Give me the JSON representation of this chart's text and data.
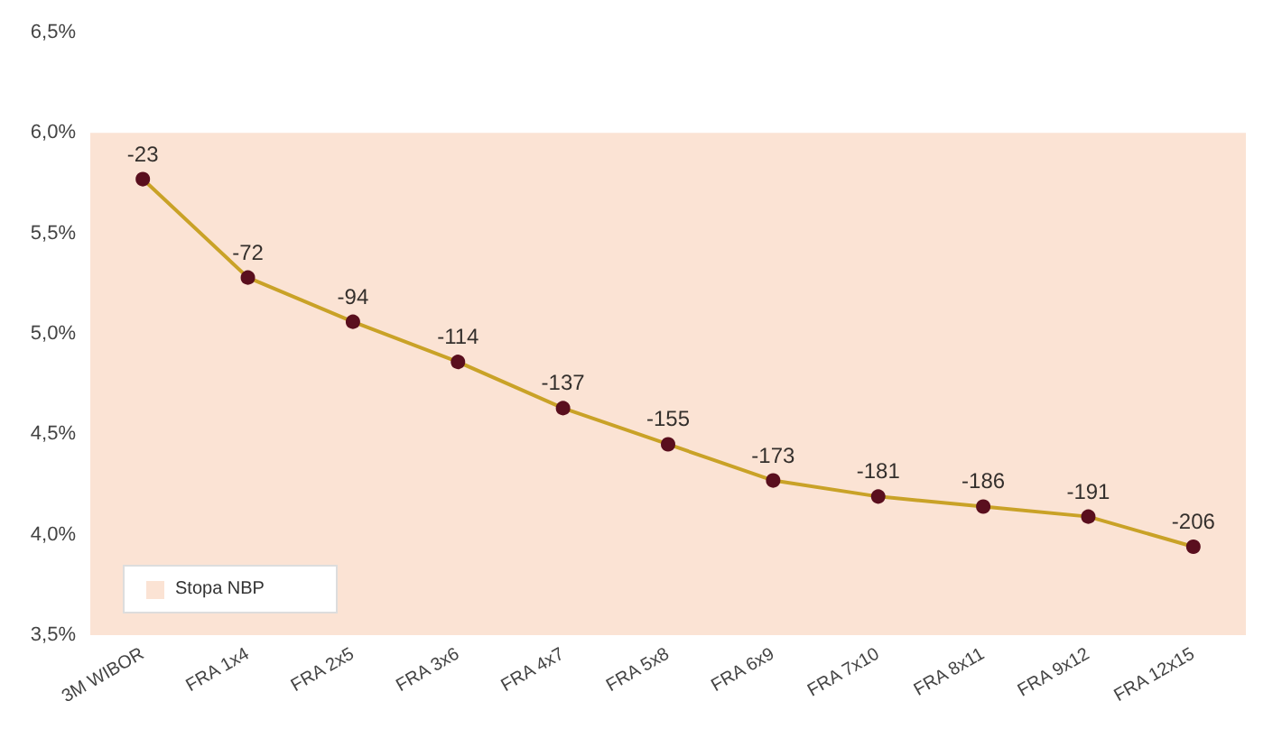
{
  "chart_data": {
    "type": "line",
    "categories": [
      "3M WIBOR",
      "FRA 1x4",
      "FRA 2x5",
      "FRA 3x6",
      "FRA 4x7",
      "FRA 5x8",
      "FRA 6x9",
      "FRA 7x10",
      "FRA 8x11",
      "FRA 9x12",
      "FRA 12x15"
    ],
    "series": [
      {
        "color": "#c9a227",
        "values": [
          5.77,
          5.28,
          5.06,
          4.86,
          4.63,
          4.45,
          4.27,
          4.19,
          4.14,
          4.09,
          3.94
        ]
      }
    ],
    "annotations": [
      {
        "text": "-23",
        "x": "3M WIBOR",
        "y": 5.77
      },
      {
        "text": "-72",
        "x": "FRA 1x4",
        "y": 5.28
      },
      {
        "text": "-94",
        "x": "FRA 2x5",
        "y": 5.06
      },
      {
        "text": "-114",
        "x": "FRA 3x6",
        "y": 4.86
      },
      {
        "text": "-137",
        "x": "FRA 4x7",
        "y": 4.63
      },
      {
        "text": "-155",
        "x": "FRA 5x8",
        "y": 4.45
      },
      {
        "text": "-173",
        "x": "FRA 6x9",
        "y": 4.27
      },
      {
        "text": "-181",
        "x": "FRA 7x10",
        "y": 4.19
      },
      {
        "text": "-186",
        "x": "FRA 8x11",
        "y": 4.14
      },
      {
        "text": "-191",
        "x": "FRA 9x12",
        "y": 4.09
      },
      {
        "text": "-206",
        "x": "FRA 12x15",
        "y": 3.94
      }
    ],
    "ylim": [
      3.5,
      6.5
    ],
    "yticks": [
      {
        "value": 3.5,
        "label": "3,5%"
      },
      {
        "value": 4.0,
        "label": "4,0%"
      },
      {
        "value": 4.5,
        "label": "4,5%"
      },
      {
        "value": 5.0,
        "label": "5,0%"
      },
      {
        "value": 5.5,
        "label": "5,5%"
      },
      {
        "value": 6.0,
        "label": "6,0%"
      },
      {
        "value": 6.5,
        "label": "6,5%"
      }
    ],
    "bands": [
      {
        "axis": "y",
        "from": 3.5,
        "to": 6.0,
        "label": "Stopa NBP",
        "color": "#fbe3d4"
      }
    ],
    "marker": "circle",
    "line_style": "solid",
    "grid": false,
    "legend": "bottom left"
  }
}
